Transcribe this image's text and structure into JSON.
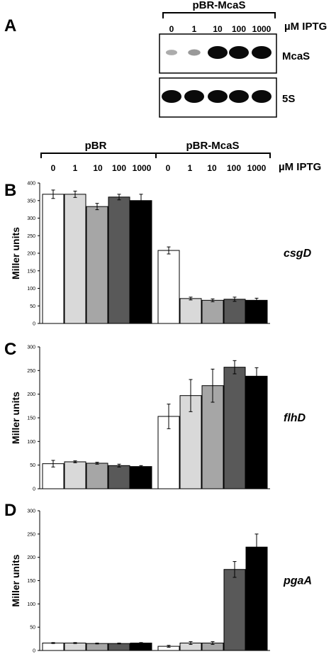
{
  "panel_letters": [
    "A",
    "B",
    "C",
    "D"
  ],
  "header_a": {
    "group_label": "pBR-McaS",
    "iptg_unit": "µM IPTG",
    "doses": [
      "0",
      "1",
      "10",
      "100",
      "1000"
    ]
  },
  "header_b": {
    "groups": [
      "pBR",
      "pBR-McaS"
    ],
    "iptg_unit": "µM IPTG",
    "doses": [
      "0",
      "1",
      "10",
      "100",
      "1000",
      "0",
      "1",
      "10",
      "100",
      "1000"
    ]
  },
  "blots": [
    {
      "label": "McaS",
      "band_intensity": [
        0.15,
        0.25,
        1,
        1,
        1
      ]
    },
    {
      "label": "5S",
      "band_intensity": [
        1,
        1,
        1,
        1,
        1
      ]
    }
  ],
  "bar_colors": [
    "#ffffff",
    "#d9d9d9",
    "#a6a6a6",
    "#595959",
    "#000000"
  ],
  "chart_data": [
    {
      "type": "bar",
      "panel": "B",
      "gene": "csgD",
      "ylabel": "Miller units",
      "ylim": [
        0,
        400
      ],
      "yticks": [
        0,
        50,
        100,
        150,
        200,
        250,
        300,
        350,
        400
      ],
      "categories": [
        "0",
        "1",
        "10",
        "100",
        "1000",
        "0",
        "1",
        "10",
        "100",
        "1000"
      ],
      "values": [
        368,
        368,
        333,
        360,
        350,
        208,
        71,
        66,
        69,
        66
      ],
      "errors": [
        12,
        9,
        9,
        8,
        18,
        10,
        4,
        4,
        6,
        6
      ]
    },
    {
      "type": "bar",
      "panel": "C",
      "gene": "flhD",
      "ylabel": "Miller units",
      "ylim": [
        0,
        300
      ],
      "yticks": [
        0,
        50,
        100,
        150,
        200,
        250,
        300
      ],
      "categories": [
        "0",
        "1",
        "10",
        "100",
        "1000",
        "0",
        "1",
        "10",
        "100",
        "1000"
      ],
      "values": [
        53,
        57,
        54,
        49,
        47,
        153,
        197,
        218,
        257,
        238
      ],
      "errors": [
        7,
        2,
        2,
        3,
        2,
        26,
        34,
        35,
        14,
        18
      ]
    },
    {
      "type": "bar",
      "panel": "D",
      "gene": "pgaA",
      "ylabel": "Miller units",
      "ylim": [
        0,
        300
      ],
      "yticks": [
        0,
        50,
        100,
        150,
        200,
        250,
        300
      ],
      "categories": [
        "0",
        "1",
        "10",
        "100",
        "1000",
        "0",
        "1",
        "10",
        "100",
        "1000"
      ],
      "values": [
        16,
        16,
        15,
        15,
        16,
        9,
        16,
        16,
        174,
        222
      ],
      "errors": [
        1,
        1,
        1,
        1,
        1,
        2,
        3,
        3,
        17,
        28
      ]
    }
  ]
}
